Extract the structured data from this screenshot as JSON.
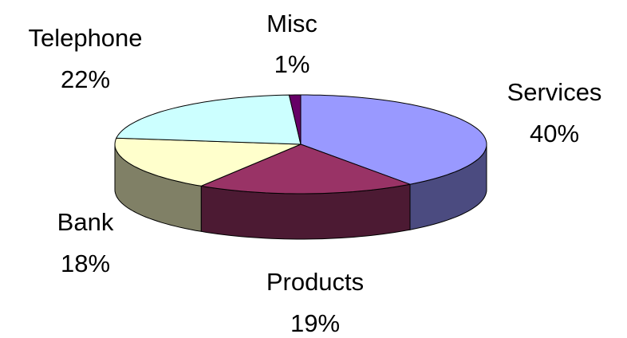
{
  "chart_data": {
    "type": "pie",
    "style": "3d-exploded-free",
    "title": "",
    "start": "clockwise from top",
    "slices": [
      {
        "label": "Services",
        "value": 40,
        "value_label": "40%",
        "color": "#9999ff",
        "side_color": "#4b4b80"
      },
      {
        "label": "Products",
        "value": 19,
        "value_label": "19%",
        "color": "#993366",
        "side_color": "#4c1a33"
      },
      {
        "label": "Bank",
        "value": 18,
        "value_label": "18%",
        "color": "#ffffcc",
        "side_color": "#808066"
      },
      {
        "label": "Telephone",
        "value": 22,
        "value_label": "22%",
        "color": "#ccffff",
        "side_color": "#668080"
      },
      {
        "label": "Misc",
        "value": 1,
        "value_label": "1%",
        "color": "#660066",
        "side_color": "#330033"
      }
    ]
  }
}
